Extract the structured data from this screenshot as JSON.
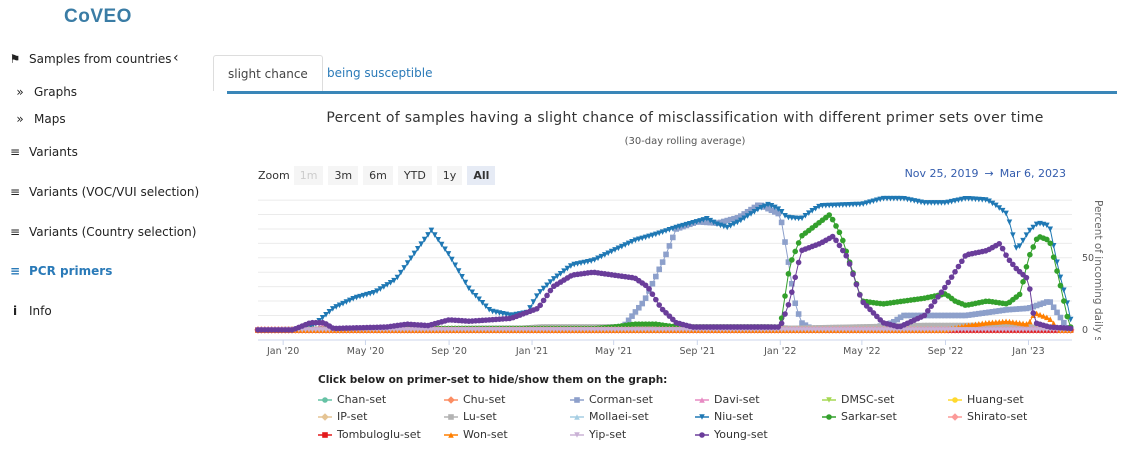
{
  "app": {
    "logo": "CoVEO"
  },
  "sidebar": {
    "items": [
      {
        "label": "Samples from countries",
        "icon": "map-icon"
      },
      {
        "label": "Graphs",
        "icon": "double-chevron-right-icon"
      },
      {
        "label": "Maps",
        "icon": "double-chevron-right-icon"
      },
      {
        "label": "Variants",
        "icon": "bar-chart-icon"
      },
      {
        "label": "Variants (VOC/VUI selection)",
        "icon": "bar-chart-icon"
      },
      {
        "label": "Variants (Country selection)",
        "icon": "bar-chart-icon"
      },
      {
        "label": "PCR primers",
        "icon": "bar-chart-icon"
      },
      {
        "label": "Info",
        "icon": "info-icon"
      }
    ]
  },
  "tabs": [
    {
      "label": "slight chance",
      "active": true
    },
    {
      "label": "being susceptible",
      "active": false
    }
  ],
  "range_selector": {
    "zoom_label": "Zoom",
    "buttons": [
      "1m",
      "3m",
      "6m",
      "YTD",
      "1y",
      "All"
    ],
    "selected": "All",
    "disabled": "1m",
    "from": "Nov 25, 2019",
    "arrow": "→",
    "to": "Mar 6, 2023"
  },
  "legend": {
    "title": "Click below on primer-set to hide/show them on the graph:"
  },
  "chart_data": {
    "type": "line",
    "title": "Percent of samples having a slight chance of misclassification with different primer sets over time",
    "subtitle": "(30-day rolling average)",
    "ylabel": "Percent of incoming daily samples [%]",
    "xlabel": "",
    "xlim": [
      "2019-11-25",
      "2023-03-06"
    ],
    "ylim": [
      -7,
      97
    ],
    "y_ticks": [
      0,
      50
    ],
    "x_ticks": [
      {
        "d": "2020-01-01",
        "label": "Jan '20"
      },
      {
        "d": "2020-05-01",
        "label": "May '20"
      },
      {
        "d": "2020-09-01",
        "label": "Sep '20"
      },
      {
        "d": "2021-01-01",
        "label": "Jan '21"
      },
      {
        "d": "2021-05-01",
        "label": "May '21"
      },
      {
        "d": "2021-09-01",
        "label": "Sep '21"
      },
      {
        "d": "2022-01-01",
        "label": "Jan '22"
      },
      {
        "d": "2022-05-01",
        "label": "May '22"
      },
      {
        "d": "2022-09-01",
        "label": "Sep '22"
      },
      {
        "d": "2023-01-01",
        "label": "Jan '23"
      }
    ],
    "grid": true,
    "legend_position": "bottom",
    "series": [
      {
        "name": "Chan-set",
        "color": "#66c2a5",
        "marker": "circle",
        "points": [
          [
            "2019-11-25",
            0
          ],
          [
            "2021-06-01",
            1
          ],
          [
            "2021-12-01",
            2
          ],
          [
            "2022-01-01",
            1
          ],
          [
            "2023-03-06",
            0
          ]
        ]
      },
      {
        "name": "Chu-set",
        "color": "#fc8d62",
        "marker": "diamond",
        "points": [
          [
            "2019-11-25",
            0
          ],
          [
            "2023-03-06",
            0
          ]
        ]
      },
      {
        "name": "Corman-set",
        "color": "#8da0cb",
        "marker": "square",
        "points": [
          [
            "2019-11-25",
            0
          ],
          [
            "2020-12-01",
            1
          ],
          [
            "2021-05-15",
            2
          ],
          [
            "2021-06-15",
            20
          ],
          [
            "2021-07-15",
            50
          ],
          [
            "2021-08-01",
            70
          ],
          [
            "2021-09-01",
            75
          ],
          [
            "2021-10-01",
            74
          ],
          [
            "2021-11-01",
            78
          ],
          [
            "2021-12-01",
            87
          ],
          [
            "2022-01-01",
            80
          ],
          [
            "2022-01-12",
            50
          ],
          [
            "2022-01-22",
            20
          ],
          [
            "2022-02-01",
            5
          ],
          [
            "2022-02-15",
            1
          ],
          [
            "2022-05-15",
            1
          ],
          [
            "2022-06-15",
            5
          ],
          [
            "2022-07-01",
            10
          ],
          [
            "2022-10-01",
            10
          ],
          [
            "2022-12-01",
            14
          ],
          [
            "2023-01-01",
            15
          ],
          [
            "2023-02-01",
            20
          ],
          [
            "2023-02-15",
            10
          ],
          [
            "2023-03-01",
            0
          ]
        ]
      },
      {
        "name": "Davi-set",
        "color": "#e78ac3",
        "marker": "triangle",
        "points": [
          [
            "2019-11-25",
            0
          ],
          [
            "2020-02-15",
            0
          ],
          [
            "2020-03-01",
            4
          ],
          [
            "2020-03-15",
            0
          ],
          [
            "2023-03-06",
            0
          ]
        ]
      },
      {
        "name": "DMSC-set",
        "color": "#a6d854",
        "marker": "triangle-down",
        "points": [
          [
            "2019-11-25",
            0
          ],
          [
            "2023-03-06",
            0
          ]
        ]
      },
      {
        "name": "Huang-set",
        "color": "#ffd92f",
        "marker": "circle",
        "points": [
          [
            "2019-11-25",
            0
          ],
          [
            "2023-03-06",
            0
          ]
        ]
      },
      {
        "name": "IP-set",
        "color": "#e5c494",
        "marker": "diamond",
        "points": [
          [
            "2019-11-25",
            0
          ],
          [
            "2023-03-06",
            0
          ]
        ]
      },
      {
        "name": "Lu-set",
        "color": "#b3b3b3",
        "marker": "square",
        "points": [
          [
            "2019-11-25",
            0
          ],
          [
            "2020-12-15",
            1
          ],
          [
            "2021-01-15",
            2
          ],
          [
            "2021-12-15",
            2
          ],
          [
            "2022-01-15",
            1
          ],
          [
            "2022-05-01",
            2
          ],
          [
            "2022-08-01",
            3
          ],
          [
            "2022-12-01",
            3
          ],
          [
            "2023-03-06",
            0
          ]
        ]
      },
      {
        "name": "Mollaei-set",
        "color": "#a6cee3",
        "marker": "triangle",
        "points": [
          [
            "2019-11-25",
            0
          ],
          [
            "2023-03-06",
            0
          ]
        ]
      },
      {
        "name": "Niu-set",
        "color": "#1f78b4",
        "marker": "triangle-down",
        "points": [
          [
            "2019-11-25",
            0
          ],
          [
            "2020-02-01",
            0
          ],
          [
            "2020-02-15",
            3
          ],
          [
            "2020-03-15",
            15
          ],
          [
            "2020-04-15",
            22
          ],
          [
            "2020-05-15",
            26
          ],
          [
            "2020-06-15",
            35
          ],
          [
            "2020-07-15",
            55
          ],
          [
            "2020-08-06",
            69
          ],
          [
            "2020-09-01",
            52
          ],
          [
            "2020-10-01",
            28
          ],
          [
            "2020-11-01",
            13
          ],
          [
            "2020-12-01",
            10
          ],
          [
            "2020-12-25",
            12
          ],
          [
            "2021-01-10",
            25
          ],
          [
            "2021-02-01",
            35
          ],
          [
            "2021-03-01",
            45
          ],
          [
            "2021-04-01",
            48
          ],
          [
            "2021-05-01",
            55
          ],
          [
            "2021-06-01",
            62
          ],
          [
            "2021-07-01",
            66
          ],
          [
            "2021-08-01",
            71
          ],
          [
            "2021-09-01",
            75
          ],
          [
            "2021-09-15",
            77
          ],
          [
            "2021-10-01",
            73
          ],
          [
            "2021-10-15",
            71
          ],
          [
            "2021-11-01",
            75
          ],
          [
            "2021-12-01",
            84
          ],
          [
            "2021-12-15",
            87
          ],
          [
            "2022-01-01",
            83
          ],
          [
            "2022-01-10",
            78
          ],
          [
            "2022-02-01",
            77
          ],
          [
            "2022-02-15",
            82
          ],
          [
            "2022-03-01",
            86
          ],
          [
            "2022-05-01",
            87
          ],
          [
            "2022-06-01",
            91
          ],
          [
            "2022-07-01",
            91
          ],
          [
            "2022-08-01",
            88
          ],
          [
            "2022-09-01",
            88
          ],
          [
            "2022-10-01",
            91
          ],
          [
            "2022-11-01",
            90
          ],
          [
            "2022-11-15",
            86
          ],
          [
            "2022-12-01",
            80
          ],
          [
            "2022-12-15",
            55
          ],
          [
            "2023-01-01",
            68
          ],
          [
            "2023-01-15",
            74
          ],
          [
            "2023-02-01",
            72
          ],
          [
            "2023-02-15",
            40
          ],
          [
            "2023-03-01",
            15
          ],
          [
            "2023-03-06",
            2
          ]
        ]
      },
      {
        "name": "Sarkar-set",
        "color": "#33a02c",
        "marker": "circle",
        "points": [
          [
            "2019-11-25",
            0
          ],
          [
            "2020-06-01",
            1
          ],
          [
            "2021-04-01",
            1
          ],
          [
            "2021-05-01",
            2
          ],
          [
            "2021-06-01",
            4
          ],
          [
            "2021-07-01",
            4
          ],
          [
            "2021-08-01",
            2
          ],
          [
            "2022-01-01",
            2
          ],
          [
            "2022-01-15",
            45
          ],
          [
            "2022-02-01",
            65
          ],
          [
            "2022-03-01",
            75
          ],
          [
            "2022-03-15",
            80
          ],
          [
            "2022-04-01",
            65
          ],
          [
            "2022-05-01",
            20
          ],
          [
            "2022-06-01",
            18
          ],
          [
            "2022-08-01",
            22
          ],
          [
            "2022-09-01",
            25
          ],
          [
            "2022-09-15",
            20
          ],
          [
            "2022-10-01",
            17
          ],
          [
            "2022-11-01",
            20
          ],
          [
            "2022-12-01",
            18
          ],
          [
            "2022-12-20",
            25
          ],
          [
            "2023-01-01",
            50
          ],
          [
            "2023-01-15",
            65
          ],
          [
            "2023-02-01",
            62
          ],
          [
            "2023-02-15",
            35
          ],
          [
            "2023-03-01",
            5
          ],
          [
            "2023-03-06",
            0
          ]
        ]
      },
      {
        "name": "Shirato-set",
        "color": "#fb9a99",
        "marker": "diamond",
        "points": [
          [
            "2019-11-25",
            0
          ],
          [
            "2023-03-06",
            0
          ]
        ]
      },
      {
        "name": "Tombuloglu-set",
        "color": "#e31a1c",
        "marker": "square",
        "points": [
          [
            "2019-11-25",
            0
          ],
          [
            "2023-03-06",
            0
          ]
        ]
      },
      {
        "name": "Won-set",
        "color": "#ff7f00",
        "marker": "triangle",
        "points": [
          [
            "2019-11-25",
            0
          ],
          [
            "2022-09-01",
            0
          ],
          [
            "2022-10-01",
            3
          ],
          [
            "2022-11-01",
            5
          ],
          [
            "2022-12-01",
            6
          ],
          [
            "2023-01-01",
            4
          ],
          [
            "2023-01-10",
            12
          ],
          [
            "2023-02-01",
            8
          ],
          [
            "2023-02-15",
            0
          ],
          [
            "2023-03-06",
            0
          ]
        ]
      },
      {
        "name": "Yip-set",
        "color": "#cab2d6",
        "marker": "triangle-down",
        "points": [
          [
            "2019-11-25",
            0
          ],
          [
            "2023-03-06",
            0
          ]
        ]
      },
      {
        "name": "Young-set",
        "color": "#6a3d9a",
        "marker": "circle",
        "points": [
          [
            "2019-11-25",
            0
          ],
          [
            "2020-01-15",
            0
          ],
          [
            "2020-02-10",
            5
          ],
          [
            "2020-03-01",
            5
          ],
          [
            "2020-03-15",
            1
          ],
          [
            "2020-06-01",
            2
          ],
          [
            "2020-07-01",
            4
          ],
          [
            "2020-08-01",
            3
          ],
          [
            "2020-09-01",
            7
          ],
          [
            "2020-10-01",
            6
          ],
          [
            "2020-12-01",
            8
          ],
          [
            "2021-01-10",
            15
          ],
          [
            "2021-02-01",
            30
          ],
          [
            "2021-03-01",
            38
          ],
          [
            "2021-04-01",
            40
          ],
          [
            "2021-05-01",
            38
          ],
          [
            "2021-06-01",
            36
          ],
          [
            "2021-06-20",
            30
          ],
          [
            "2021-07-10",
            15
          ],
          [
            "2021-08-01",
            5
          ],
          [
            "2021-08-25",
            2
          ],
          [
            "2022-01-01",
            2
          ],
          [
            "2022-01-15",
            20
          ],
          [
            "2022-02-01",
            55
          ],
          [
            "2022-03-01",
            60
          ],
          [
            "2022-03-20",
            65
          ],
          [
            "2022-04-10",
            50
          ],
          [
            "2022-05-01",
            20
          ],
          [
            "2022-06-01",
            5
          ],
          [
            "2022-06-25",
            2
          ],
          [
            "2022-08-01",
            10
          ],
          [
            "2022-09-01",
            30
          ],
          [
            "2022-10-01",
            52
          ],
          [
            "2022-11-01",
            55
          ],
          [
            "2022-11-20",
            60
          ],
          [
            "2022-12-01",
            50
          ],
          [
            "2022-12-15",
            42
          ],
          [
            "2023-01-01",
            35
          ],
          [
            "2023-01-10",
            5
          ],
          [
            "2023-02-01",
            2
          ],
          [
            "2023-03-06",
            1
          ]
        ]
      }
    ]
  }
}
